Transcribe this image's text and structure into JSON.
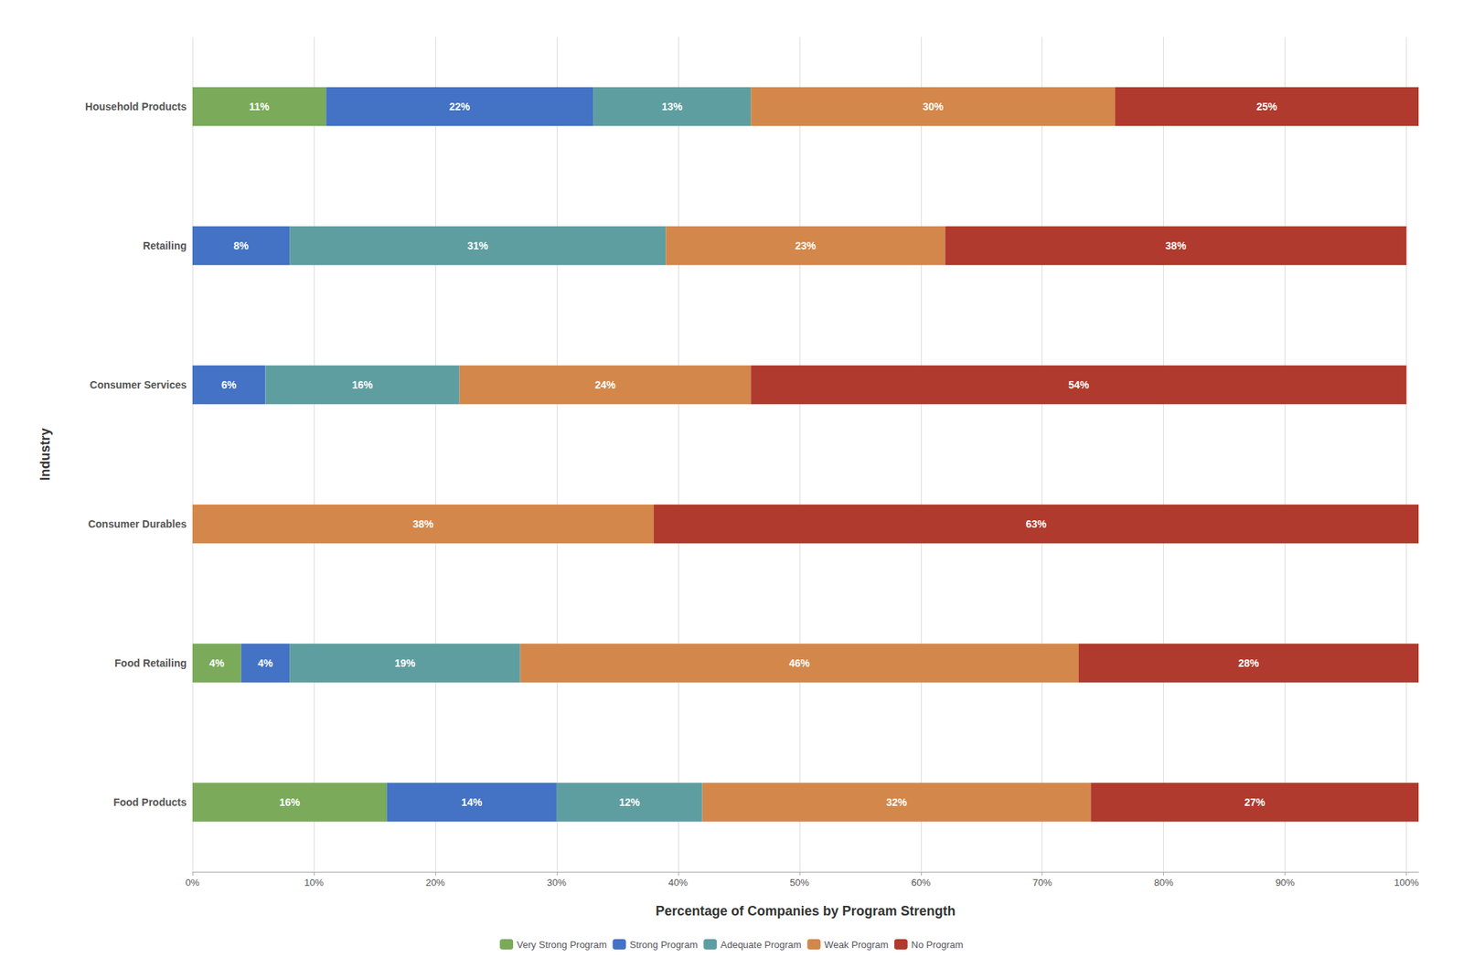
{
  "chart_data": {
    "type": "bar",
    "orientation": "horizontal",
    "stacked": true,
    "data_labels": true,
    "grid": true,
    "legend": "bottom",
    "xlabel": "Percentage of Companies by Program Strength",
    "ylabel": "Industry",
    "categories": [
      "Food Products",
      "Food Retailing",
      "Consumer Durables",
      "Consumer Services",
      "Retailing",
      "Household Products"
    ],
    "series": [
      {
        "name": "Very Strong Program",
        "color": "#7aaa5a",
        "values": [
          16,
          4,
          0,
          0,
          0,
          11
        ],
        "value_labels": [
          "16%",
          "4%",
          null,
          null,
          null,
          "11%"
        ]
      },
      {
        "name": "Strong Program",
        "color": "#4472c4",
        "values": [
          14,
          4,
          0,
          6,
          8,
          22
        ],
        "value_labels": [
          "14%",
          "4%",
          null,
          "6%",
          "8%",
          "22%"
        ]
      },
      {
        "name": "Adequate Program",
        "color": "#5f9ea0",
        "values": [
          12,
          19,
          0,
          16,
          31,
          13
        ],
        "value_labels": [
          "12%",
          "19%",
          null,
          "16%",
          "31%",
          "13%"
        ]
      },
      {
        "name": "Weak Program",
        "color": "#d4874a",
        "values": [
          32,
          46,
          38,
          24,
          23,
          30
        ],
        "value_labels": [
          "32%",
          "46%",
          "38%",
          "24%",
          "23%",
          "30%"
        ]
      },
      {
        "name": "No Program",
        "color": "#b03a2e",
        "values": [
          27,
          28,
          63,
          54,
          38,
          25
        ],
        "value_labels": [
          "27%",
          "28%",
          "63%",
          "54%",
          "38%",
          "25%"
        ]
      }
    ],
    "xlim": [
      0,
      101
    ],
    "xticks": [
      {
        "value": 0,
        "label": "0%"
      },
      {
        "value": 10,
        "label": "10%"
      },
      {
        "value": 20,
        "label": "20%"
      },
      {
        "value": 30,
        "label": "30%"
      },
      {
        "value": 40,
        "label": "40%"
      },
      {
        "value": 50,
        "label": "50%"
      },
      {
        "value": 60,
        "label": "60%"
      },
      {
        "value": 70,
        "label": "70%"
      },
      {
        "value": 80,
        "label": "80%"
      },
      {
        "value": 90,
        "label": "90%"
      },
      {
        "value": 100,
        "label": "100%"
      }
    ]
  }
}
